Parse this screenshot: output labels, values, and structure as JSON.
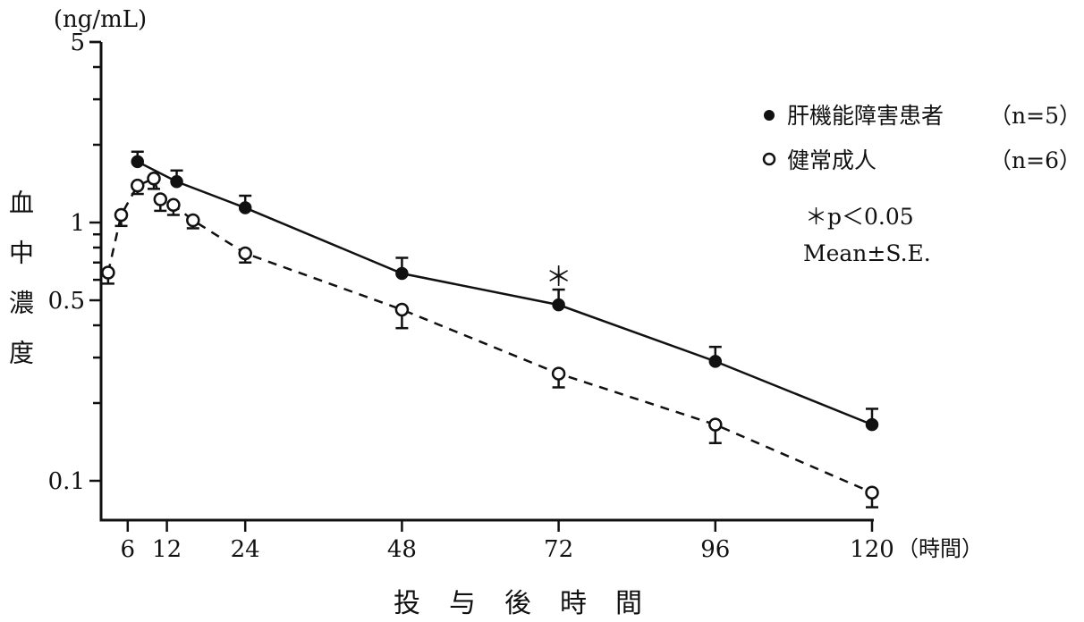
{
  "chart_data": {
    "type": "line",
    "title": "",
    "xlabel": "投与後時間",
    "xunit": "（時間）",
    "ylabel": "血中濃度",
    "yunit": "(ng/mL)",
    "yscale": "log",
    "ylim": [
      0.07,
      5
    ],
    "xlim": [
      2,
      120
    ],
    "xticks": [
      6,
      12,
      24,
      48,
      72,
      96,
      120
    ],
    "xtick_labels": [
      "6",
      "12",
      "24",
      "48",
      "72",
      "96",
      "120"
    ],
    "yticks": [
      5,
      1,
      0.5,
      0.1
    ],
    "ytick_labels": [
      "5",
      "1",
      "0.5",
      "0.1"
    ],
    "grid": false,
    "legend_position": "top-right",
    "series": [
      {
        "name": "肝機能障害患者",
        "n_label": "（n=5）",
        "marker": "filled-circle",
        "line": "solid",
        "x": [
          7.5,
          13.5,
          24,
          48,
          72,
          96,
          120
        ],
        "y": [
          1.72,
          1.44,
          1.14,
          0.635,
          0.48,
          0.29,
          0.165
        ],
        "error_upper": [
          1.88,
          1.59,
          1.27,
          0.73,
          0.55,
          0.33,
          0.19
        ]
      },
      {
        "name": "健常成人",
        "n_label": "（n=6）",
        "marker": "open-circle",
        "line": "dashed",
        "x": [
          3,
          5,
          7.5,
          10,
          11,
          13,
          16,
          24,
          48,
          72,
          96,
          120
        ],
        "y": [
          0.64,
          1.07,
          1.39,
          1.48,
          1.23,
          1.17,
          1.02,
          0.76,
          0.46,
          0.26,
          0.165,
          0.09
        ],
        "error_lower": [
          0.58,
          0.97,
          1.29,
          1.35,
          1.11,
          1.07,
          0.95,
          0.7,
          0.39,
          0.23,
          0.14,
          0.079
        ]
      }
    ],
    "annotations": {
      "significance_mark": "＊",
      "significance_at_x": 72,
      "pvalue_note": "＊p＜0.05",
      "stat_note": "Mean±S.E."
    }
  }
}
